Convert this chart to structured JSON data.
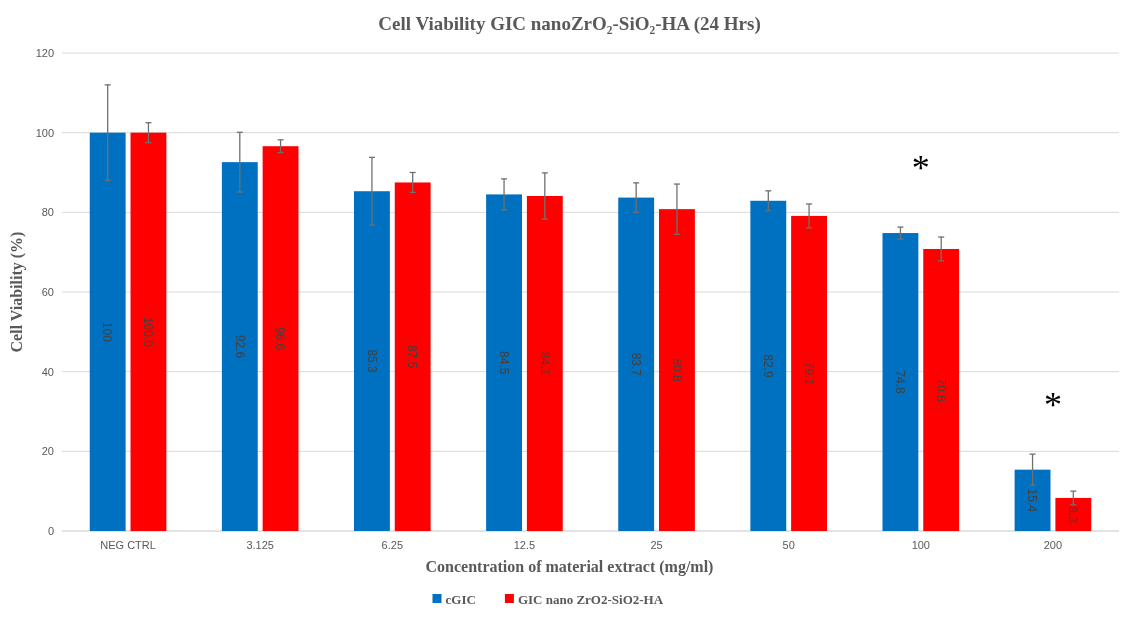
{
  "chart_data": {
    "type": "bar",
    "title": "Cell Viability GIC nanoZrO₂-SiO₂-HA  (24 Hrs)",
    "xlabel": "Concentration of material extract (mg/ml)",
    "ylabel": "Cell Viability (%)",
    "categories": [
      "NEG CTRL",
      "3.125",
      "6.25",
      "12.5",
      "25",
      "50",
      "100",
      "200"
    ],
    "series": [
      {
        "name": "cGIC",
        "color": "#0070c0",
        "values": [
          100,
          92.6,
          85.3,
          84.5,
          83.7,
          82.9,
          74.8,
          15.4
        ],
        "value_labels": [
          "100",
          "92.6",
          "85.3",
          "84.5",
          "83.7",
          "82.9",
          "74.8",
          "15.4"
        ],
        "errors": [
          12,
          7.5,
          8.5,
          3.9,
          3.7,
          2.5,
          1.5,
          3.9
        ]
      },
      {
        "name": "GIC nano ZrO2-SiO2-HA",
        "color": "#ff0000",
        "values": [
          100,
          96.6,
          87.5,
          84.1,
          80.8,
          79.1,
          70.8,
          8.3
        ],
        "value_labels": [
          "100.0",
          "96.6",
          "87.5",
          "84.1",
          "80.8",
          "79.1",
          "70.8",
          "8.3"
        ],
        "errors": [
          2.5,
          1.6,
          2.5,
          5.8,
          6.3,
          3,
          3,
          1.7
        ]
      }
    ],
    "annotations": [
      "*",
      "*"
    ],
    "ylim": [
      0,
      120
    ],
    "yticks": [
      0,
      20,
      40,
      60,
      80,
      100,
      120
    ],
    "grid": "y",
    "legend": "bottom"
  }
}
